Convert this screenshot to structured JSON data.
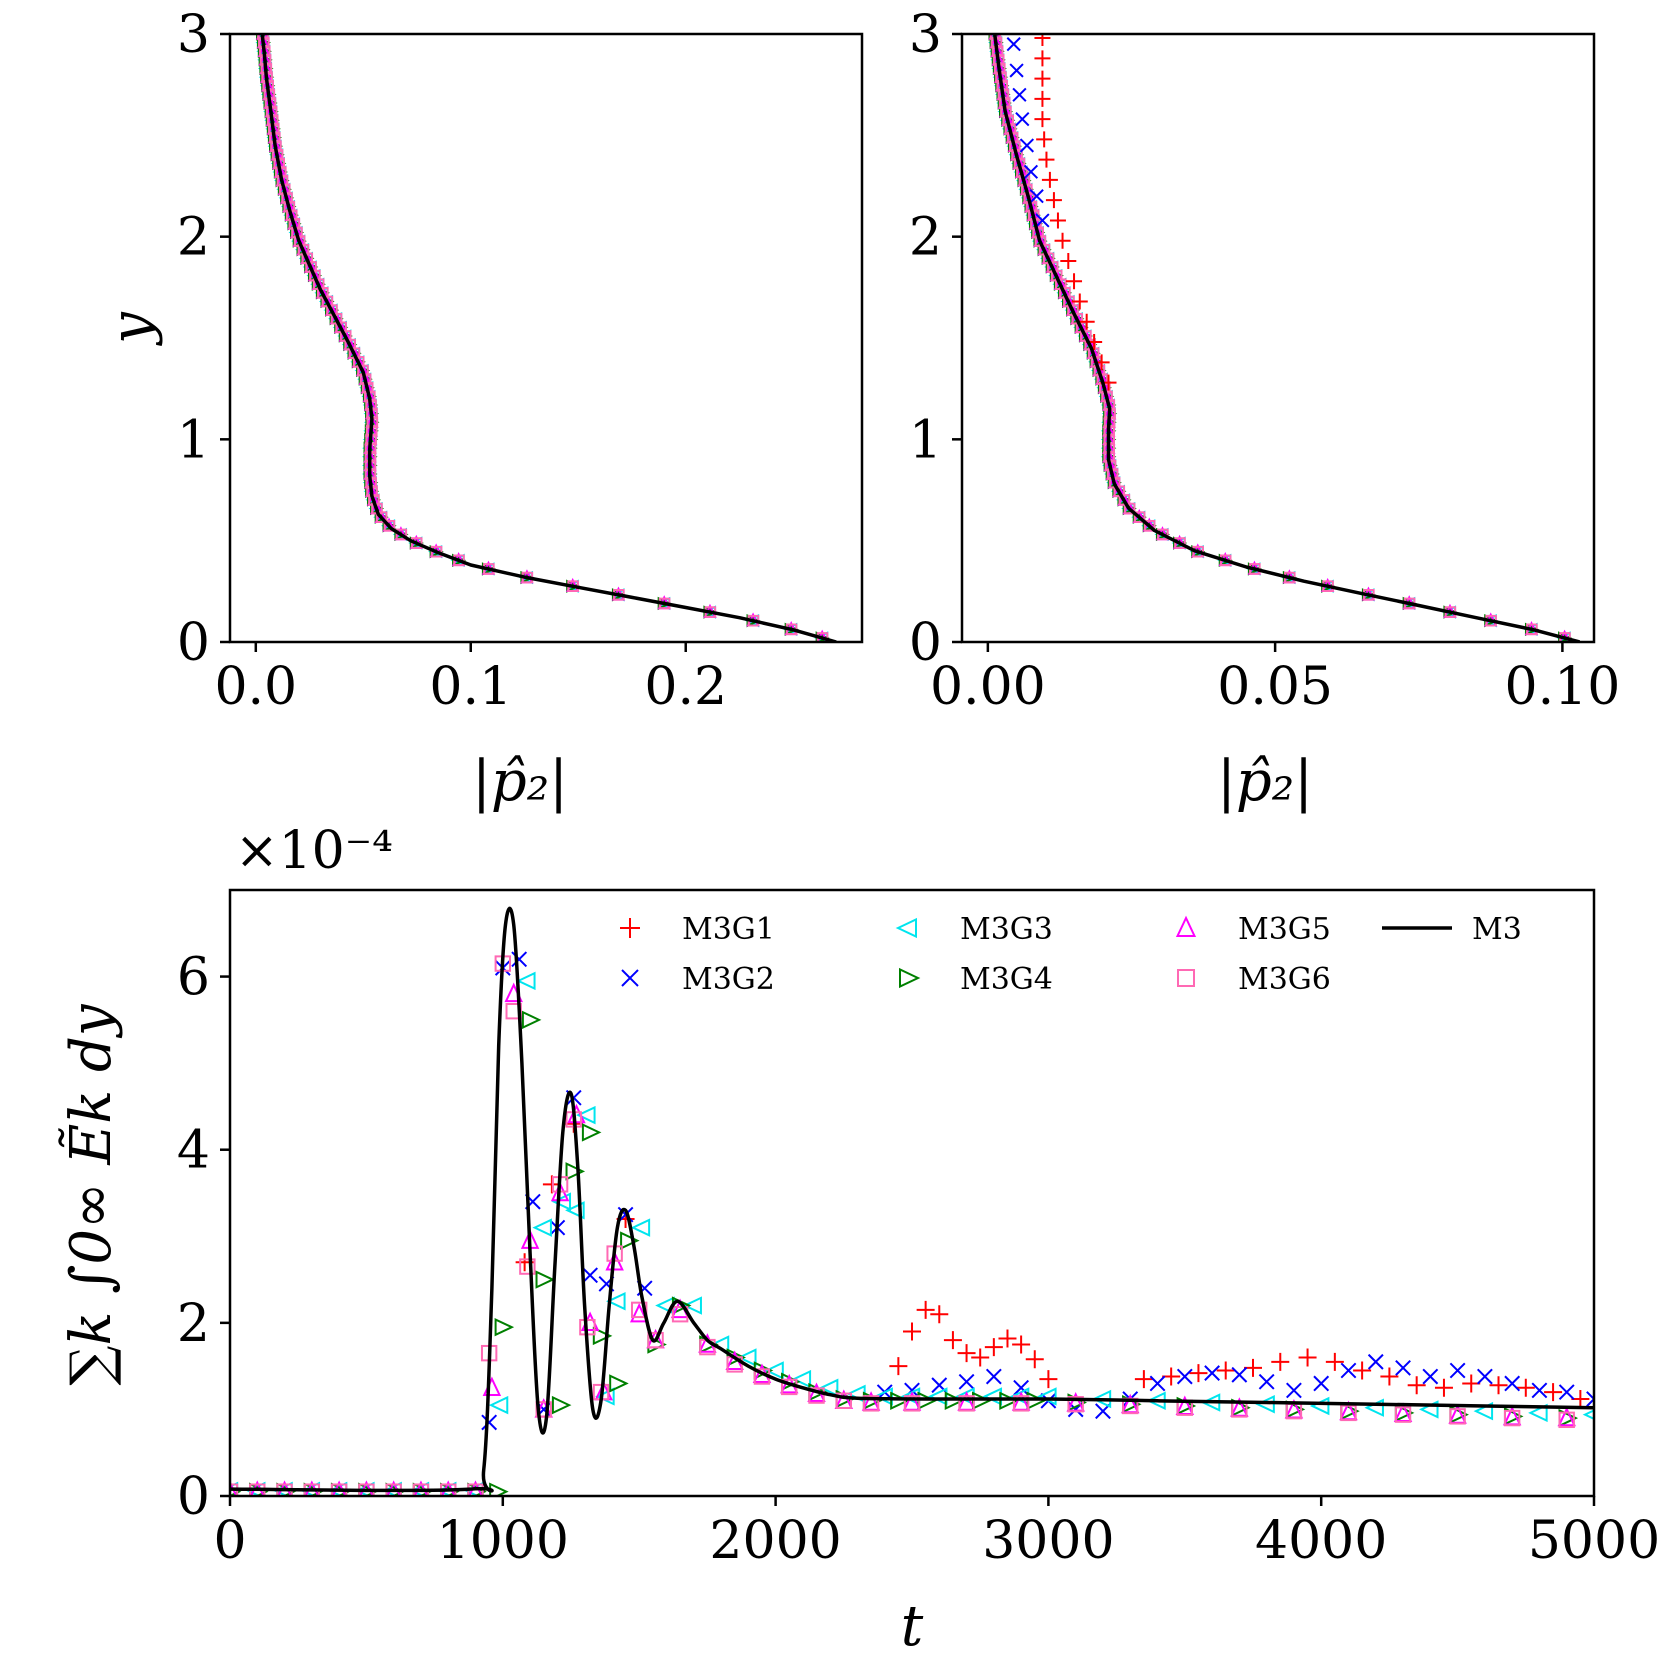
{
  "colors": {
    "M3G1": "#ff0000",
    "M3G2": "#0000ff",
    "M3G3": "#00e5ee",
    "M3G4": "#008000",
    "M3G5": "#ff00ff",
    "M3G6": "#ff69b4",
    "M3": "#000000"
  },
  "chart_data": [
    {
      "type": "line",
      "panel": "top-left",
      "xlabel": "|p̂₂|",
      "ylabel": "y",
      "xlim": [
        -0.012,
        0.282
      ],
      "ylim": [
        0,
        3
      ],
      "xticks": [
        0.0,
        0.1,
        0.2
      ],
      "xtick_labels": [
        "0.0",
        "0.1",
        "0.2"
      ],
      "yticks": [
        0,
        1,
        2,
        3
      ],
      "ytick_labels": [
        "0",
        "1",
        "2",
        "3"
      ],
      "series": [
        {
          "name": "M3",
          "style": "line",
          "x": [
            0.27,
            0.25,
            0.225,
            0.2,
            0.175,
            0.15,
            0.125,
            0.1,
            0.085,
            0.072,
            0.063,
            0.057,
            0.054,
            0.053,
            0.053,
            0.054,
            0.053,
            0.05,
            0.043,
            0.036,
            0.03,
            0.025,
            0.02,
            0.016,
            0.012,
            0.009,
            0.007,
            0.005,
            0.004,
            0.003
          ],
          "y": [
            0.0,
            0.06,
            0.12,
            0.17,
            0.22,
            0.27,
            0.32,
            0.38,
            0.44,
            0.5,
            0.56,
            0.63,
            0.72,
            0.82,
            0.95,
            1.1,
            1.2,
            1.33,
            1.48,
            1.62,
            1.74,
            1.86,
            1.98,
            2.12,
            2.28,
            2.45,
            2.62,
            2.78,
            2.9,
            3.0
          ]
        }
      ]
    },
    {
      "type": "line",
      "panel": "top-right",
      "xlabel": "|p̂₂|",
      "ylabel": "",
      "xlim": [
        -0.0045,
        0.1055
      ],
      "ylim": [
        0,
        3
      ],
      "xticks": [
        0.0,
        0.05,
        0.1
      ],
      "xtick_labels": [
        "0.00",
        "0.05",
        "0.10"
      ],
      "yticks": [
        0,
        1,
        2,
        3
      ],
      "ytick_labels": [
        "0",
        "1",
        "2",
        "3"
      ],
      "series": [
        {
          "name": "M3",
          "style": "line",
          "x": [
            0.103,
            0.095,
            0.085,
            0.075,
            0.065,
            0.055,
            0.045,
            0.036,
            0.029,
            0.0245,
            0.022,
            0.021,
            0.021,
            0.0212,
            0.02,
            0.018,
            0.015,
            0.012,
            0.009,
            0.007,
            0.005,
            0.003,
            0.002,
            0.0012
          ],
          "y": [
            0.0,
            0.06,
            0.12,
            0.18,
            0.24,
            0.3,
            0.37,
            0.45,
            0.55,
            0.66,
            0.78,
            0.9,
            1.05,
            1.15,
            1.28,
            1.45,
            1.62,
            1.8,
            1.98,
            2.2,
            2.4,
            2.62,
            2.82,
            3.0
          ]
        },
        {
          "name": "M3G1",
          "style": "marker",
          "x": [
            0.0095,
            0.0095,
            0.0095,
            0.0095,
            0.0095,
            0.0098,
            0.0102,
            0.0108,
            0.0115,
            0.0122,
            0.013,
            0.014,
            0.015,
            0.016,
            0.0172,
            0.0185,
            0.0198,
            0.021
          ],
          "y": [
            2.98,
            2.88,
            2.78,
            2.68,
            2.58,
            2.48,
            2.38,
            2.28,
            2.18,
            2.08,
            1.98,
            1.88,
            1.78,
            1.68,
            1.58,
            1.48,
            1.38,
            1.28
          ]
        },
        {
          "name": "M3G2",
          "style": "marker",
          "x": [
            0.0045,
            0.005,
            0.0055,
            0.006,
            0.0068,
            0.0075,
            0.0085,
            0.0095
          ],
          "y": [
            2.95,
            2.82,
            2.7,
            2.58,
            2.45,
            2.32,
            2.2,
            2.08
          ]
        }
      ]
    },
    {
      "type": "scatter",
      "panel": "bottom",
      "xlabel": "t",
      "ylabel": "∑k ∫0∞ Ẽk dy",
      "scale_label": "×10⁻⁴",
      "scale_exponent": -4,
      "xlim": [
        0,
        5000
      ],
      "ylim": [
        0,
        7
      ],
      "xticks": [
        0,
        1000,
        2000,
        3000,
        4000,
        5000
      ],
      "xtick_labels": [
        "0",
        "1000",
        "2000",
        "3000",
        "4000",
        "5000"
      ],
      "yticks": [
        0,
        2,
        4,
        6
      ],
      "ytick_labels": [
        "0",
        "2",
        "4",
        "6"
      ],
      "legend": {
        "placement": "top-right",
        "columns": 4
      },
      "series": [
        {
          "name": "M3",
          "marker": "line",
          "x": [
            0,
            880,
            930,
            960,
            985,
            1010,
            1040,
            1070,
            1100,
            1130,
            1160,
            1190,
            1220,
            1250,
            1275,
            1300,
            1330,
            1360,
            1390,
            1420,
            1450,
            1480,
            1510,
            1550,
            1590,
            1640,
            1700,
            1750,
            1800,
            1900,
            2000,
            2100,
            2200,
            2300,
            2600,
            3000,
            3400,
            3800,
            4200,
            4600,
            5000
          ],
          "y": [
            0.08,
            0.08,
            0.3,
            2.4,
            5.2,
            6.6,
            6.6,
            5.0,
            2.8,
            1.0,
            0.9,
            2.6,
            4.2,
            4.65,
            3.8,
            2.2,
            1.0,
            1.1,
            2.2,
            3.1,
            3.3,
            2.9,
            2.3,
            1.8,
            2.0,
            2.25,
            2.0,
            1.8,
            1.7,
            1.5,
            1.35,
            1.25,
            1.17,
            1.13,
            1.12,
            1.12,
            1.1,
            1.08,
            1.06,
            1.04,
            1.02
          ]
        },
        {
          "name": "M3G1",
          "marker": "plus",
          "x": [
            1080,
            1180,
            1260,
            1450,
            2450,
            2500,
            2550,
            2600,
            2650,
            2700,
            2750,
            2800,
            2850,
            2900,
            2950,
            3000,
            3350,
            3450,
            3550,
            3650,
            3750,
            3850,
            3950,
            4050,
            4150,
            4250,
            4350,
            4450,
            4550,
            4650,
            4750,
            4850,
            4950
          ],
          "y": [
            2.7,
            3.6,
            4.3,
            3.2,
            1.5,
            1.9,
            2.15,
            2.1,
            1.8,
            1.65,
            1.6,
            1.72,
            1.82,
            1.75,
            1.58,
            1.35,
            1.35,
            1.38,
            1.42,
            1.45,
            1.48,
            1.55,
            1.6,
            1.55,
            1.45,
            1.38,
            1.28,
            1.25,
            1.3,
            1.28,
            1.25,
            1.2,
            1.12
          ]
        },
        {
          "name": "M3G2",
          "marker": "x",
          "x": [
            950,
            1000,
            1060,
            1110,
            1150,
            1200,
            1260,
            1320,
            1380,
            1450,
            1520,
            2400,
            2500,
            2600,
            2700,
            2800,
            2900,
            3000,
            3100,
            3200,
            3300,
            3400,
            3500,
            3600,
            3700,
            3800,
            3900,
            4000,
            4100,
            4200,
            4300,
            4400,
            4500,
            4600,
            4700,
            4800,
            4900,
            5000
          ],
          "y": [
            0.85,
            6.1,
            6.2,
            3.4,
            1.0,
            3.1,
            4.6,
            2.55,
            2.45,
            3.25,
            2.4,
            1.2,
            1.22,
            1.28,
            1.32,
            1.38,
            1.25,
            1.1,
            1.0,
            0.98,
            1.12,
            1.3,
            1.38,
            1.42,
            1.4,
            1.32,
            1.22,
            1.3,
            1.45,
            1.55,
            1.48,
            1.38,
            1.45,
            1.38,
            1.3,
            1.22,
            1.2,
            1.12
          ]
        },
        {
          "name": "M3G3",
          "marker": "triangle-left",
          "x": [
            0,
            100,
            200,
            300,
            400,
            500,
            600,
            700,
            800,
            900,
            990,
            1090,
            1150,
            1220,
            1270,
            1310,
            1380,
            1420,
            1510,
            1600,
            1700,
            1800,
            1900,
            2000,
            2100,
            2200,
            2300,
            2400,
            2500,
            2600,
            2700,
            2800,
            2900,
            3000,
            3200,
            3400,
            3600,
            3800,
            4000,
            4200,
            4400,
            4600,
            4800,
            5000
          ],
          "y": [
            0.06,
            0.06,
            0.06,
            0.06,
            0.06,
            0.06,
            0.06,
            0.06,
            0.06,
            0.06,
            1.05,
            5.95,
            3.1,
            3.4,
            3.3,
            4.4,
            1.15,
            2.25,
            3.1,
            2.2,
            2.2,
            1.75,
            1.6,
            1.45,
            1.35,
            1.25,
            1.18,
            1.15,
            1.15,
            1.15,
            1.15,
            1.15,
            1.15,
            1.15,
            1.12,
            1.1,
            1.08,
            1.06,
            1.04,
            1.02,
            1.0,
            0.98,
            0.96,
            0.94
          ]
        },
        {
          "name": "M3G4",
          "marker": "triangle-right",
          "x": [
            0,
            100,
            200,
            300,
            400,
            500,
            600,
            700,
            800,
            900,
            980,
            1000,
            1100,
            1150,
            1210,
            1260,
            1320,
            1360,
            1420,
            1460,
            1560,
            1650,
            1750,
            1850,
            1950,
            2050,
            2150,
            2250,
            2350,
            2450,
            2550,
            2650,
            2750,
            2850,
            2950,
            3100,
            3300,
            3500,
            3700,
            3900,
            4100,
            4300,
            4500,
            4700,
            4900
          ],
          "y": [
            0.05,
            0.05,
            0.05,
            0.05,
            0.05,
            0.05,
            0.05,
            0.05,
            0.05,
            0.05,
            0.05,
            1.95,
            5.5,
            2.5,
            1.05,
            3.75,
            4.2,
            1.85,
            1.3,
            2.95,
            1.75,
            2.2,
            1.75,
            1.6,
            1.45,
            1.32,
            1.2,
            1.12,
            1.1,
            1.1,
            1.1,
            1.1,
            1.1,
            1.1,
            1.1,
            1.08,
            1.06,
            1.04,
            1.02,
            1.0,
            0.98,
            0.96,
            0.94,
            0.92,
            0.9
          ]
        },
        {
          "name": "M3G5",
          "marker": "triangle-up",
          "x": [
            0,
            100,
            200,
            300,
            400,
            500,
            600,
            700,
            800,
            900,
            960,
            1040,
            1100,
            1150,
            1210,
            1270,
            1320,
            1370,
            1410,
            1500,
            1560,
            1650,
            1750,
            1850,
            1950,
            2050,
            2150,
            2250,
            2350,
            2500,
            2700,
            2900,
            3100,
            3300,
            3500,
            3700,
            3900,
            4100,
            4300,
            4500,
            4700,
            4900
          ],
          "y": [
            0.05,
            0.05,
            0.05,
            0.05,
            0.05,
            0.05,
            0.05,
            0.05,
            0.05,
            0.05,
            1.25,
            5.8,
            2.95,
            1.0,
            3.5,
            4.4,
            2.0,
            1.2,
            2.7,
            2.1,
            1.8,
            2.15,
            1.75,
            1.55,
            1.4,
            1.28,
            1.18,
            1.1,
            1.08,
            1.08,
            1.08,
            1.08,
            1.07,
            1.05,
            1.03,
            1.01,
            0.99,
            0.97,
            0.95,
            0.93,
            0.91,
            0.9
          ]
        },
        {
          "name": "M3G6",
          "marker": "square",
          "x": [
            0,
            100,
            200,
            300,
            400,
            500,
            600,
            700,
            800,
            900,
            950,
            1000,
            1040,
            1090,
            1150,
            1210,
            1260,
            1310,
            1360,
            1410,
            1500,
            1560,
            1650,
            1750,
            1850,
            1950,
            2050,
            2150,
            2250,
            2350,
            2500,
            2700,
            2900,
            3100,
            3300,
            3500,
            3700,
            3900,
            4100,
            4300,
            4500,
            4700,
            4900
          ],
          "y": [
            0.05,
            0.05,
            0.05,
            0.05,
            0.05,
            0.05,
            0.05,
            0.05,
            0.05,
            0.05,
            1.65,
            6.15,
            5.6,
            2.65,
            1.0,
            3.6,
            4.35,
            1.95,
            1.2,
            2.8,
            2.15,
            1.8,
            2.1,
            1.72,
            1.52,
            1.38,
            1.26,
            1.16,
            1.1,
            1.07,
            1.07,
            1.07,
            1.07,
            1.06,
            1.04,
            1.02,
            1.0,
            0.98,
            0.96,
            0.94,
            0.92,
            0.9,
            0.88
          ]
        }
      ]
    }
  ]
}
